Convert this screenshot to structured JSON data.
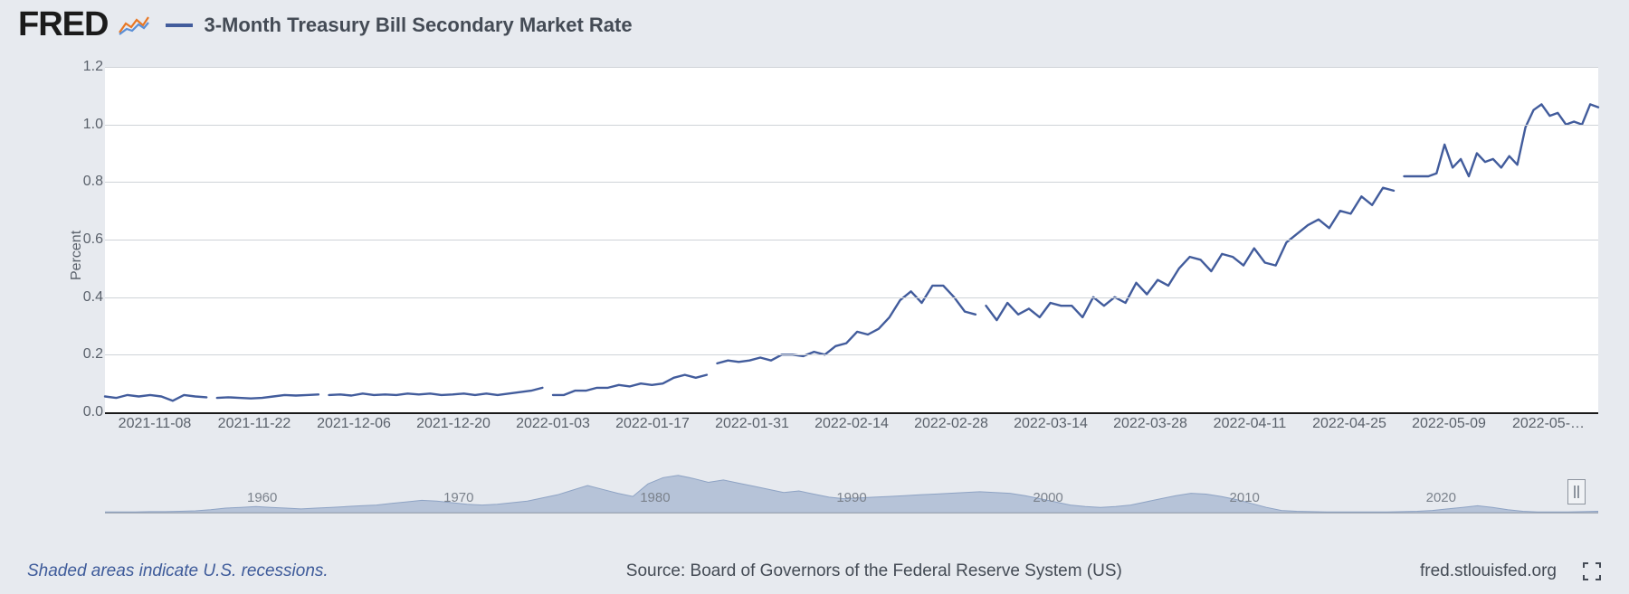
{
  "brand": "FRED",
  "legend": {
    "swatch_color": "#425c9c",
    "label": "3-Month Treasury Bill Secondary Market Rate"
  },
  "chart": {
    "type": "line",
    "background_color": "#ffffff",
    "grid_color": "#cfd3d8",
    "axis_color": "#1a1a1a",
    "line_color": "#425c9c",
    "line_width": 2.4,
    "ylabel": "Percent",
    "label_fontsize": 16,
    "tick_fontsize": 16,
    "ylim": [
      0.0,
      1.2
    ],
    "ytick_step": 0.2,
    "yticks": [
      "0.0",
      "0.2",
      "0.4",
      "0.6",
      "0.8",
      "1.0",
      "1.2"
    ],
    "xticks": [
      "2021-11-08",
      "2021-11-22",
      "2021-12-06",
      "2021-12-20",
      "2022-01-03",
      "2022-01-17",
      "2022-01-31",
      "2022-02-14",
      "2022-02-28",
      "2022-03-14",
      "2022-03-28",
      "2022-04-11",
      "2022-04-25",
      "2022-05-09",
      "2022-05-…"
    ],
    "xcount": 15,
    "segments": [
      {
        "start_x": 0.0,
        "values": [
          0.055,
          0.05,
          0.06,
          0.055,
          0.06,
          0.055,
          0.04,
          0.06,
          0.055,
          0.052
        ]
      },
      {
        "start_x": 0.075,
        "values": [
          0.05,
          0.052,
          0.05,
          0.048,
          0.05,
          0.055,
          0.06,
          0.058,
          0.06,
          0.062
        ]
      },
      {
        "start_x": 0.15,
        "values": [
          0.06,
          0.062,
          0.058,
          0.065,
          0.06,
          0.062,
          0.06,
          0.065,
          0.062,
          0.065,
          0.06,
          0.062,
          0.065,
          0.06,
          0.065,
          0.06,
          0.065,
          0.07,
          0.075,
          0.085
        ]
      },
      {
        "start_x": 0.3,
        "values": [
          0.06,
          0.06,
          0.075,
          0.075,
          0.085,
          0.085,
          0.095,
          0.09,
          0.1,
          0.095,
          0.1,
          0.12,
          0.13,
          0.12,
          0.13
        ]
      },
      {
        "start_x": 0.41,
        "values": [
          0.17,
          0.18,
          0.175,
          0.18,
          0.19,
          0.18,
          0.2,
          0.2,
          0.195,
          0.21,
          0.2,
          0.23,
          0.24,
          0.28,
          0.27,
          0.29,
          0.33,
          0.39,
          0.42,
          0.38,
          0.44,
          0.44,
          0.4,
          0.35,
          0.34
        ]
      },
      {
        "start_x": 0.59,
        "values": [
          0.37,
          0.32,
          0.38,
          0.34,
          0.36,
          0.33,
          0.38,
          0.37,
          0.37,
          0.33,
          0.4,
          0.37,
          0.4,
          0.38,
          0.45,
          0.41,
          0.46,
          0.44,
          0.5,
          0.54,
          0.53,
          0.49,
          0.55,
          0.54,
          0.51,
          0.57,
          0.52,
          0.51,
          0.59,
          0.62,
          0.65,
          0.67,
          0.64,
          0.7,
          0.69,
          0.75,
          0.72,
          0.78,
          0.77
        ]
      },
      {
        "start_x": 0.87,
        "values": [
          0.82,
          0.82,
          0.82,
          0.82,
          0.83,
          0.93,
          0.85,
          0.88,
          0.82,
          0.9,
          0.87,
          0.88,
          0.85,
          0.89,
          0.86,
          0.99,
          1.05,
          1.07,
          1.03,
          1.04,
          1.0,
          1.01,
          1.0,
          1.07,
          1.06
        ]
      }
    ]
  },
  "brush": {
    "fill_color": "#8ea3c4",
    "baseline_color": "#9aa1ab",
    "ticks": [
      "1960",
      "1970",
      "1980",
      "1990",
      "2000",
      "2010",
      "2020"
    ],
    "selection_start": 0.985,
    "area": [
      0.02,
      0.02,
      0.02,
      0.03,
      0.03,
      0.04,
      0.05,
      0.08,
      0.12,
      0.14,
      0.16,
      0.14,
      0.12,
      0.1,
      0.12,
      0.14,
      0.16,
      0.18,
      0.2,
      0.24,
      0.28,
      0.32,
      0.3,
      0.26,
      0.22,
      0.2,
      0.22,
      0.26,
      0.3,
      0.38,
      0.46,
      0.58,
      0.7,
      0.6,
      0.5,
      0.42,
      0.74,
      0.9,
      0.96,
      0.88,
      0.78,
      0.84,
      0.76,
      0.68,
      0.6,
      0.52,
      0.56,
      0.48,
      0.4,
      0.36,
      0.38,
      0.4,
      0.42,
      0.44,
      0.46,
      0.48,
      0.5,
      0.52,
      0.54,
      0.52,
      0.5,
      0.44,
      0.36,
      0.28,
      0.2,
      0.16,
      0.14,
      0.16,
      0.2,
      0.28,
      0.36,
      0.44,
      0.5,
      0.48,
      0.42,
      0.34,
      0.24,
      0.14,
      0.06,
      0.04,
      0.03,
      0.02,
      0.02,
      0.02,
      0.02,
      0.02,
      0.03,
      0.04,
      0.06,
      0.1,
      0.14,
      0.18,
      0.14,
      0.08,
      0.04,
      0.02,
      0.02,
      0.02,
      0.03,
      0.04
    ]
  },
  "footer": {
    "left": "Shaded areas indicate U.S. recessions.",
    "center": "Source: Board of Governors of the Federal Reserve System (US)",
    "right": "fred.stlouisfed.org"
  },
  "colors": {
    "page_bg": "#e7eaef",
    "text": "#444b55",
    "muted": "#7b828c",
    "link": "#3e5b9a"
  }
}
